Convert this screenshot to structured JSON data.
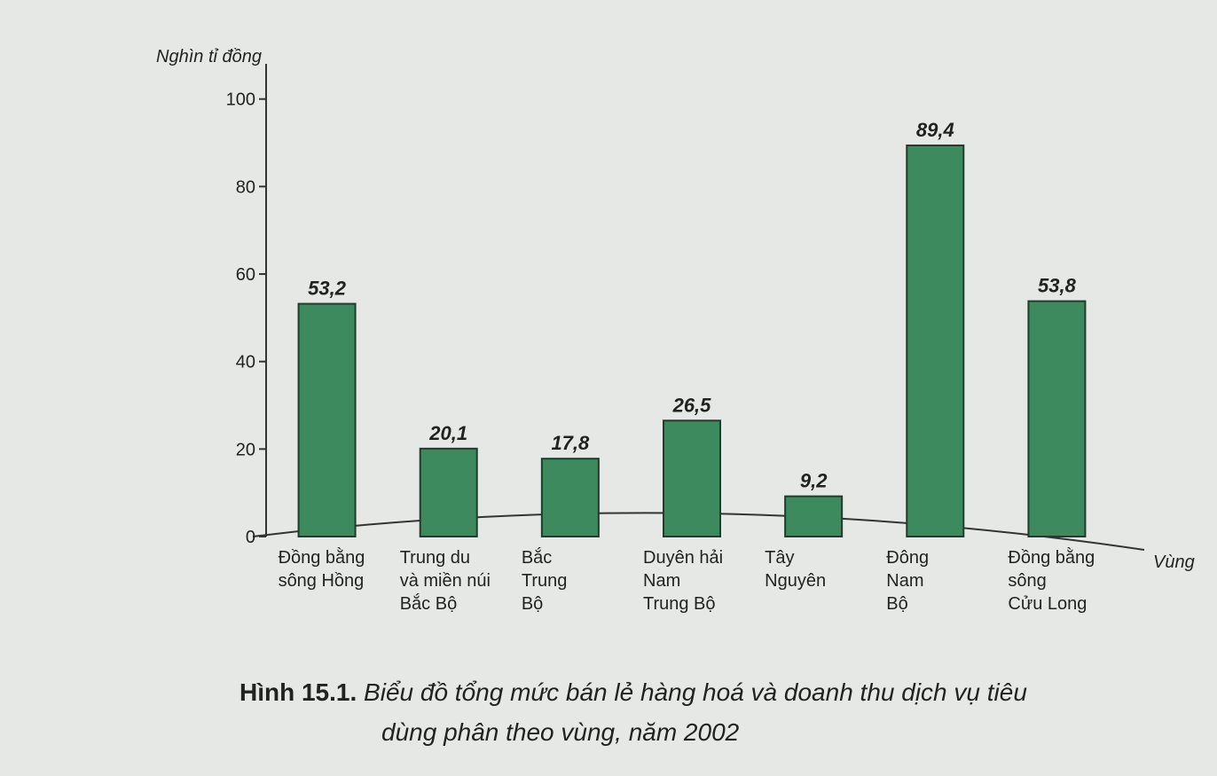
{
  "chart_data": {
    "type": "bar",
    "caption_label": "Hình 15.1.",
    "title": "Biểu đồ tổng mức bán lẻ hàng hoá và doanh thu dịch vụ tiêu",
    "subtitle": "dùng phân theo vùng, năm 2002",
    "y_label": "Nghìn tỉ đồng",
    "x_label": "Vùng",
    "categories": [
      "Đồng bằng\nsông Hồng",
      "Trung du\nvà miền núi\nBắc Bộ",
      "Bắc\nTrung\nBộ",
      "Duyên hải\nNam\nTrung Bộ",
      "Tây\nNguyên",
      "Đông\nNam\nBộ",
      "Đồng bằng\nsông\nCửu Long"
    ],
    "values": [
      53.2,
      20.1,
      17.8,
      26.5,
      9.2,
      89.4,
      53.8
    ],
    "value_labels": [
      "53,2",
      "20,1",
      "17,8",
      "26,5",
      "9,2",
      "89,4",
      "53,8"
    ],
    "color": "#3d8a5f",
    "ylim": [
      0,
      105
    ],
    "yticks": [
      0,
      20,
      40,
      60,
      80,
      100
    ]
  }
}
